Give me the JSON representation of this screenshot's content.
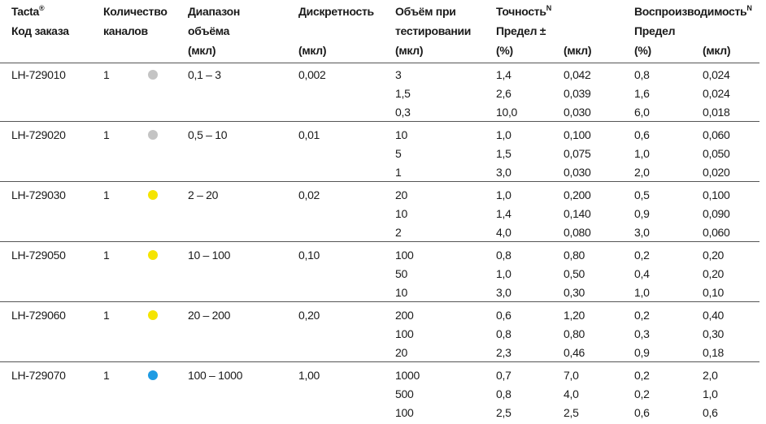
{
  "header": {
    "columns": [
      [
        {
          "text": "Tacta",
          "sup": "®"
        },
        "Код заказа",
        null
      ],
      [
        "Количество",
        "каналов",
        null
      ],
      [
        "Диапазон",
        "объёма",
        "(мкл)"
      ],
      [
        "Дискретность",
        null,
        "(мкл)"
      ],
      [
        "Объём при",
        "тестировании",
        "(мкл)"
      ],
      [
        {
          "text": "Точность",
          "sup": "N"
        },
        "Предел ±",
        "(%)"
      ],
      [
        null,
        null,
        "(мкл)"
      ],
      [
        {
          "text": "Воспроизводимость",
          "sup": "N"
        },
        "Предел",
        "(%)"
      ],
      [
        null,
        null,
        "(мкл)"
      ]
    ]
  },
  "rows": [
    {
      "code": "LH-729010",
      "channels": "1",
      "color": "#c4c4c4",
      "range": "0,1 – 3",
      "discreteness": "0,002",
      "tests": [
        [
          "3",
          "1,4",
          "0,042",
          "0,8",
          "0,024"
        ],
        [
          "1,5",
          "2,6",
          "0,039",
          "1,6",
          "0,024"
        ],
        [
          "0,3",
          "10,0",
          "0,030",
          "6,0",
          "0,018"
        ]
      ]
    },
    {
      "code": "LH-729020",
      "channels": "1",
      "color": "#c4c4c4",
      "range": "0,5 – 10",
      "discreteness": "0,01",
      "tests": [
        [
          "10",
          "1,0",
          "0,100",
          "0,6",
          "0,060"
        ],
        [
          "5",
          "1,5",
          "0,075",
          "1,0",
          "0,050"
        ],
        [
          "1",
          "3,0",
          "0,030",
          "2,0",
          "0,020"
        ]
      ]
    },
    {
      "code": "LH-729030",
      "channels": "1",
      "color": "#f5e400",
      "range": "2 – 20",
      "discreteness": "0,02",
      "tests": [
        [
          "20",
          "1,0",
          "0,200",
          "0,5",
          "0,100"
        ],
        [
          "10",
          "1,4",
          "0,140",
          "0,9",
          "0,090"
        ],
        [
          "2",
          "4,0",
          "0,080",
          "3,0",
          "0,060"
        ]
      ]
    },
    {
      "code": "LH-729050",
      "channels": "1",
      "color": "#f5e400",
      "range": "10 – 100",
      "discreteness": "0,10",
      "tests": [
        [
          "100",
          "0,8",
          "0,80",
          "0,2",
          "0,20"
        ],
        [
          "50",
          "1,0",
          "0,50",
          "0,4",
          "0,20"
        ],
        [
          "10",
          "3,0",
          "0,30",
          "1,0",
          "0,10"
        ]
      ]
    },
    {
      "code": "LH-729060",
      "channels": "1",
      "color": "#f5e400",
      "range": "20 – 200",
      "discreteness": "0,20",
      "tests": [
        [
          "200",
          "0,6",
          "1,20",
          "0,2",
          "0,40"
        ],
        [
          "100",
          "0,8",
          "0,80",
          "0,3",
          "0,30"
        ],
        [
          "20",
          "2,3",
          "0,46",
          "0,9",
          "0,18"
        ]
      ]
    },
    {
      "code": "LH-729070",
      "channels": "1",
      "color": "#1e9be3",
      "range": "100 – 1000",
      "discreteness": "1,00",
      "tests": [
        [
          "1000",
          "0,7",
          "7,0",
          "0,2",
          "2,0"
        ],
        [
          "500",
          "0,8",
          "4,0",
          "0,2",
          "1,0"
        ],
        [
          "100",
          "2,5",
          "2,5",
          "0,6",
          "0,6"
        ]
      ]
    }
  ]
}
